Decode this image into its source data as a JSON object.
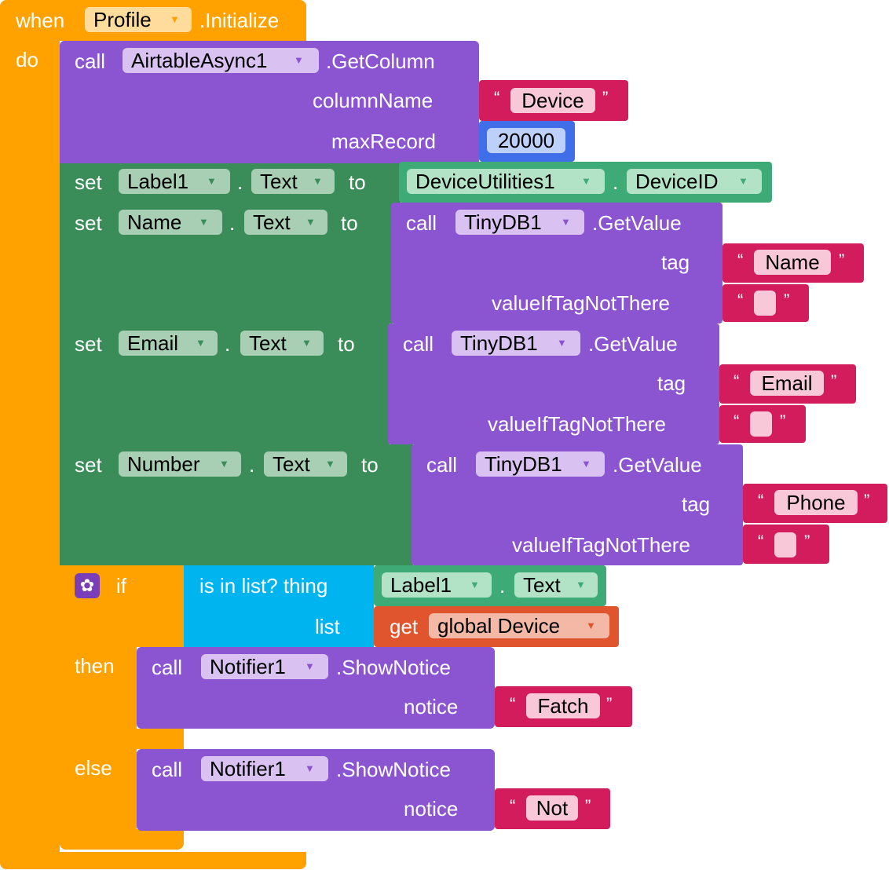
{
  "event": {
    "when": "when",
    "component": "Profile",
    "suffix": ".Initialize",
    "do": "do"
  },
  "get_column": {
    "call": "call",
    "component": "AirtableAsync1",
    "method": ".GetColumn",
    "param1": "columnName",
    "param1_value": "Device",
    "param2": "maxRecord",
    "param2_value": "20000"
  },
  "set1": {
    "set": "set",
    "component": "Label1",
    "dot": ".",
    "property": "Text",
    "to": "to",
    "value_component": "DeviceUtilities1",
    "value_dot": ".",
    "value_property": "DeviceID"
  },
  "set2": {
    "set": "set",
    "component": "Name",
    "dot": ".",
    "property": "Text",
    "to": "to",
    "call": "call",
    "db": "TinyDB1",
    "method": ".GetValue",
    "tag_label": "tag",
    "tag_value": "Name",
    "default_label": "valueIfTagNotThere",
    "default_value": ""
  },
  "set3": {
    "set": "set",
    "component": "Email",
    "dot": ".",
    "property": "Text",
    "to": "to",
    "call": "call",
    "db": "TinyDB1",
    "method": ".GetValue",
    "tag_label": "tag",
    "tag_value": "Email",
    "default_label": "valueIfTagNotThere",
    "default_value": ""
  },
  "set4": {
    "set": "set",
    "component": "Number",
    "dot": ".",
    "property": "Text",
    "to": "to",
    "call": "call",
    "db": "TinyDB1",
    "method": ".GetValue",
    "tag_label": "tag",
    "tag_value": "Phone",
    "default_label": "valueIfTagNotThere",
    "default_value": ""
  },
  "ifblock": {
    "if": "if",
    "then": "then",
    "else": "else",
    "is_in_list": "is in list? thing",
    "list": "list",
    "thing_component": "Label1",
    "thing_dot": ".",
    "thing_property": "Text",
    "get": "get",
    "get_var": "global Device"
  },
  "then_call": {
    "call": "call",
    "component": "Notifier1",
    "method": ".ShowNotice",
    "param": "notice",
    "value": "Fatch"
  },
  "else_call": {
    "call": "call",
    "component": "Notifier1",
    "method": ".ShowNotice",
    "param": "notice",
    "value": "Not"
  },
  "quotes": {
    "open": "“",
    "close": "”"
  },
  "dropdown_arrow": "▼",
  "colors": {
    "event": "#ffa200",
    "procedure": "#8b55d2",
    "setter": "#3a8c58",
    "getter": "#3eaa75",
    "text": "#d21c5b",
    "number": "#3f6ee8",
    "list": "#00b4f0",
    "variable": "#e0552d"
  }
}
